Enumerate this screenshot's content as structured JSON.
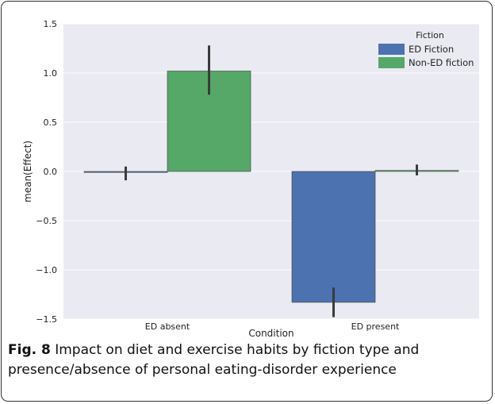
{
  "caption": {
    "label": "Fig. 8",
    "text": " Impact on diet and exercise habits by fiction type and presence/absence of personal eating-disorder experience"
  },
  "chart_data": {
    "type": "bar",
    "categories": [
      "ED absent",
      "ED present"
    ],
    "series": [
      {
        "name": "ED Fiction",
        "values": [
          -0.01,
          -1.33
        ],
        "ci": [
          [
            -0.09,
            0.05
          ],
          [
            -1.48,
            -1.18
          ]
        ],
        "color": "#4c72b0"
      },
      {
        "name": "Non-ED fiction",
        "values": [
          1.02,
          0.01
        ],
        "ci": [
          [
            0.78,
            1.28
          ],
          [
            -0.04,
            0.07
          ]
        ],
        "color": "#55a868"
      }
    ],
    "xlabel": "Condition",
    "ylabel": "mean(Effect)",
    "ylim": [
      -1.5,
      1.5
    ],
    "yticks": [
      "1.5",
      "1.0",
      "0.5",
      "0.0",
      "−0.5",
      "−1.0",
      "−1.5"
    ],
    "legend": {
      "title": "Fiction",
      "placement": "top-right"
    },
    "grid": true,
    "background": "#eaeaf2"
  }
}
